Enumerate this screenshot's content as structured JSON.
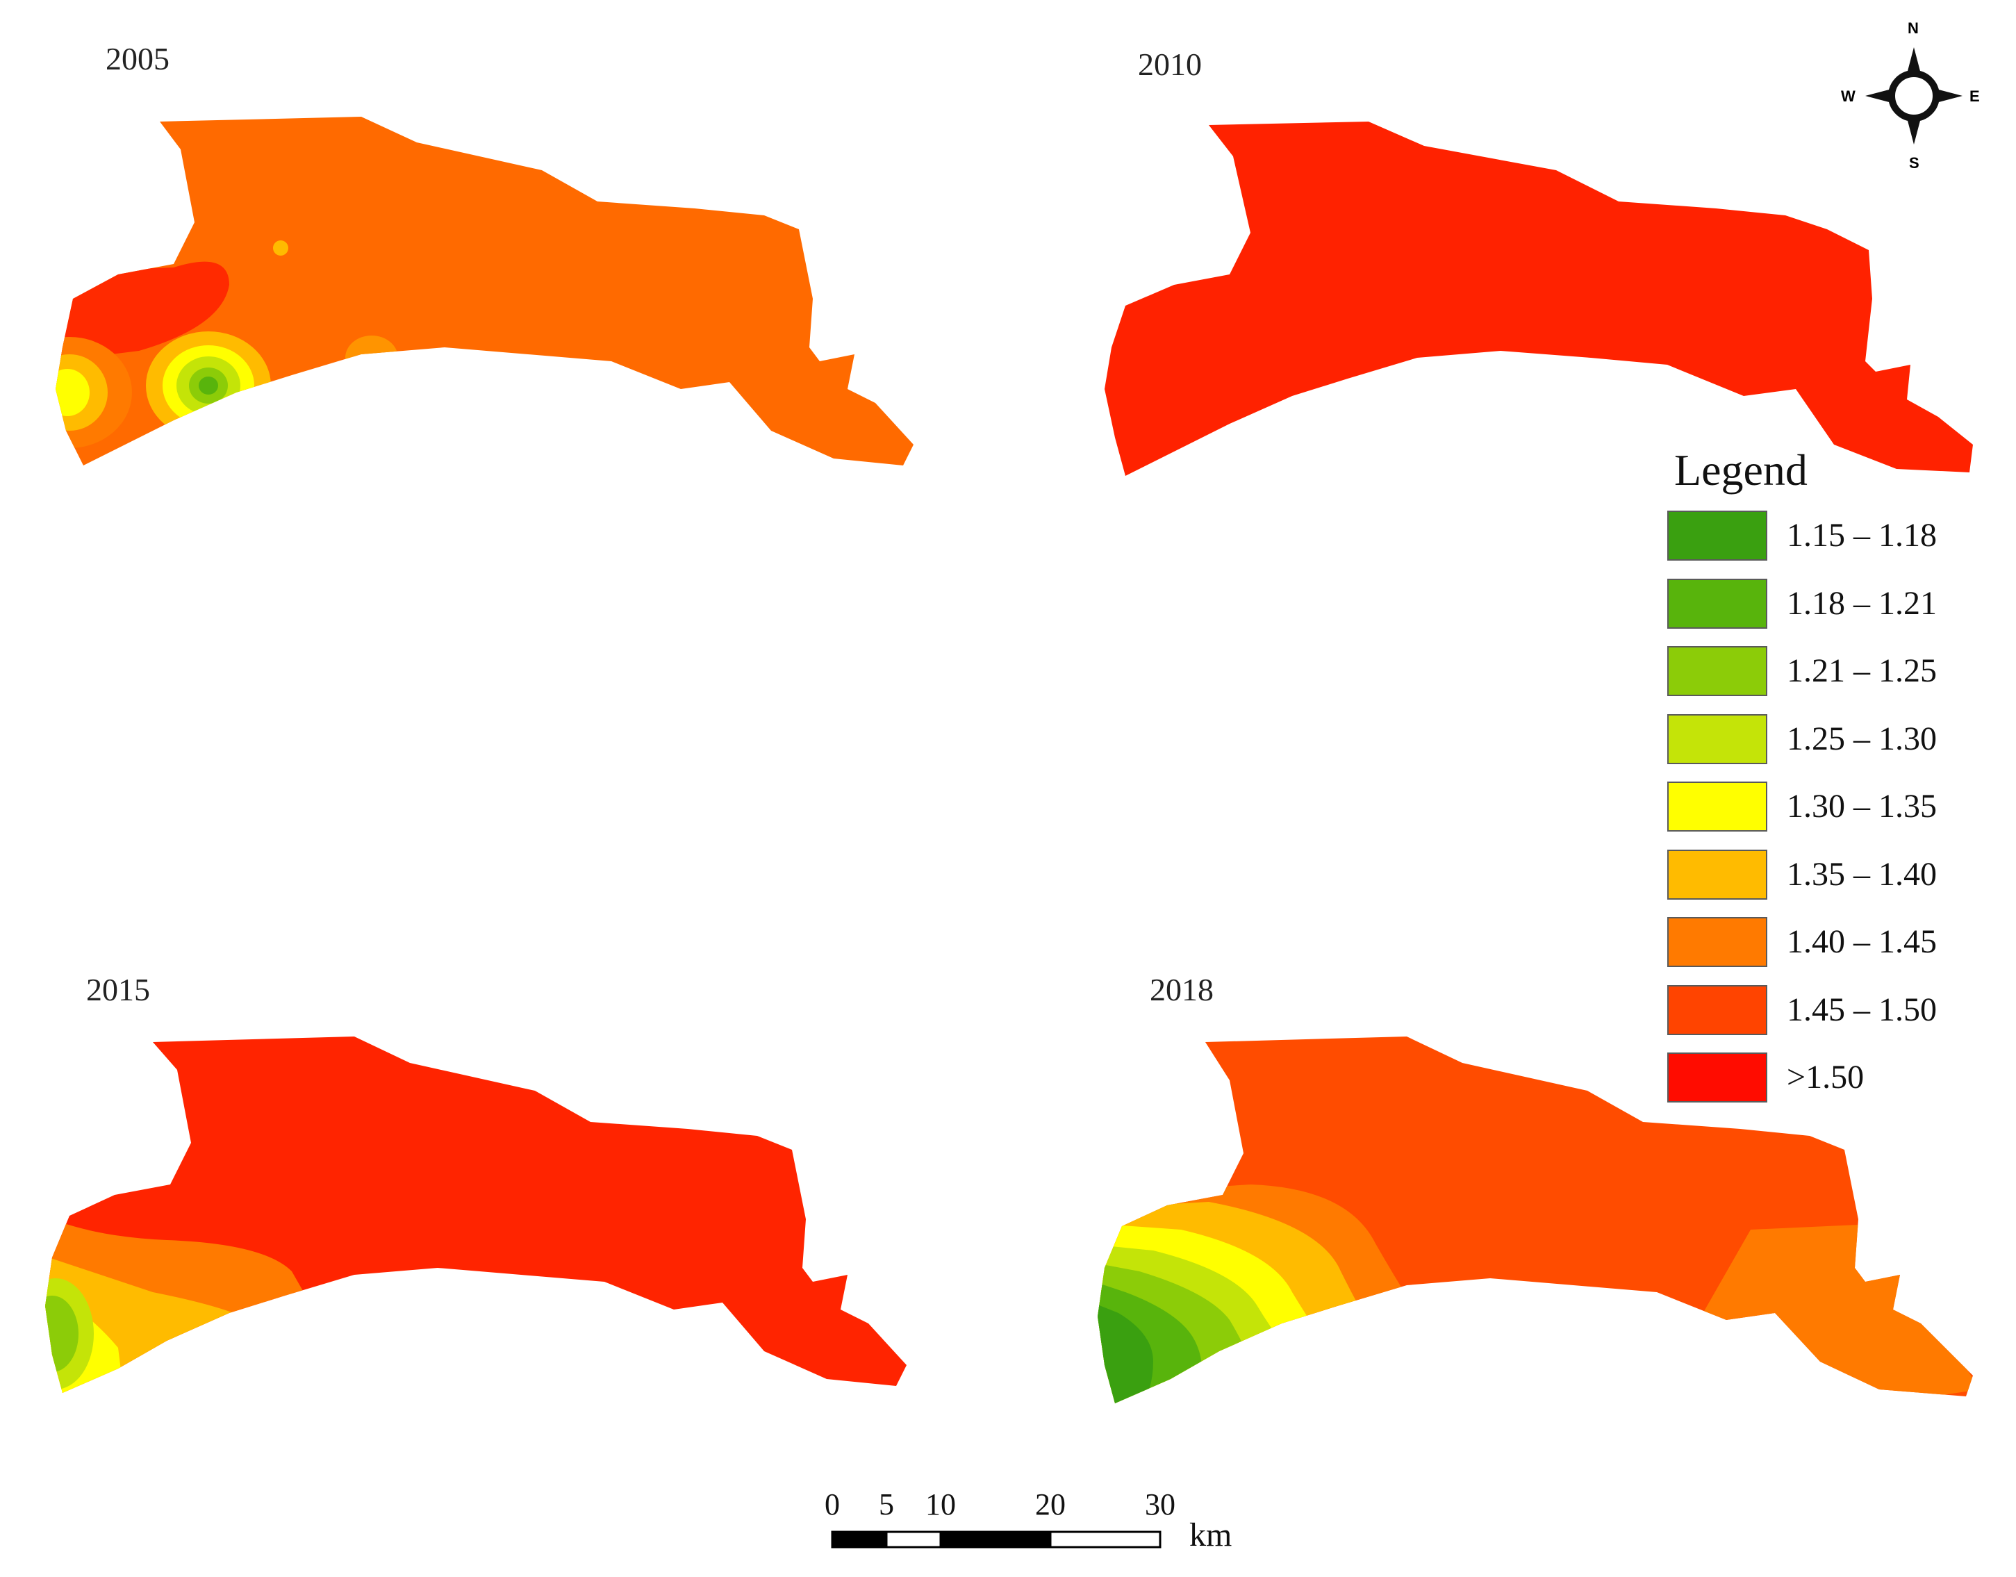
{
  "panels": [
    {
      "year": "2005",
      "fill": "#ff6a00"
    },
    {
      "year": "2010",
      "fill": "#ff2200"
    },
    {
      "year": "2015",
      "fill": "#ff2400"
    },
    {
      "year": "2018",
      "fill": "#ff4c00"
    }
  ],
  "legend": {
    "title": "Legend",
    "classes": [
      {
        "label": "1.15 – 1.18",
        "color": "#3aa010"
      },
      {
        "label": "1.18 – 1.21",
        "color": "#58b40c"
      },
      {
        "label": "1.21 – 1.25",
        "color": "#8ccc08"
      },
      {
        "label": "1.25 – 1.30",
        "color": "#c4e408"
      },
      {
        "label": "1.30 – 1.35",
        "color": "#ffff00"
      },
      {
        "label": "1.35 – 1.40",
        "color": "#ffbb00"
      },
      {
        "label": "1.40 – 1.45",
        "color": "#ff7a00"
      },
      {
        "label": "1.45 – 1.50",
        "color": "#ff4400"
      },
      {
        "label": ">1.50",
        "color": "#ff0c00"
      }
    ]
  },
  "north_arrow": {
    "n": "N",
    "s": "S",
    "e": "E",
    "w": "W"
  },
  "scale_bar": {
    "ticks": [
      "0",
      "5",
      "10",
      "20",
      "30"
    ],
    "unit": "km"
  }
}
